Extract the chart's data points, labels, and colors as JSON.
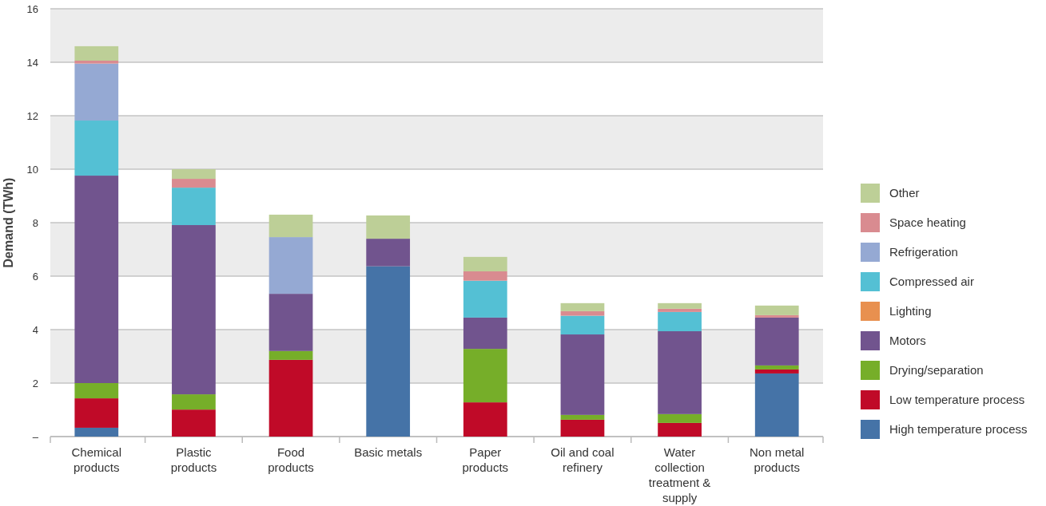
{
  "chart_data": {
    "type": "bar",
    "stacked": true,
    "ylabel": "Demand (TWh)",
    "categories": [
      "Chemical products",
      "Plastic products",
      "Food products",
      "Basic metals",
      "Paper products",
      "Oil and coal refinery",
      "Water collection treatment & supply",
      "Non metal products"
    ],
    "series": [
      {
        "name": "High temperature process",
        "color": "#4573a7",
        "values": [
          0.33,
          0,
          0,
          6.37,
          0,
          0,
          0,
          2.36
        ]
      },
      {
        "name": "Low temperature process",
        "color": "#c00a28",
        "values": [
          1.1,
          1.01,
          2.87,
          0,
          1.28,
          0.63,
          0.51,
          0.15
        ]
      },
      {
        "name": "Drying/separation",
        "color": "#76ae29",
        "values": [
          0.57,
          0.57,
          0.33,
          0,
          2.0,
          0.18,
          0.33,
          0.15
        ]
      },
      {
        "name": "Motors",
        "color": "#71548e",
        "values": [
          7.76,
          6.33,
          2.14,
          1.03,
          1.17,
          3.01,
          3.1,
          1.79
        ]
      },
      {
        "name": "Lighting",
        "color": "#e8904f",
        "values": [
          0,
          0,
          0,
          0,
          0,
          0,
          0,
          0
        ]
      },
      {
        "name": "Compressed air",
        "color": "#54c0d4",
        "values": [
          2.06,
          1.4,
          0,
          0,
          1.38,
          0.7,
          0.72,
          0
        ]
      },
      {
        "name": "Refrigeration",
        "color": "#95a9d3",
        "values": [
          2.13,
          0,
          2.12,
          0,
          0,
          0,
          0,
          0
        ]
      },
      {
        "name": "Space heating",
        "color": "#d98b90",
        "values": [
          0.11,
          0.33,
          0,
          0,
          0.35,
          0.17,
          0.12,
          0.09
        ]
      },
      {
        "name": "Other",
        "color": "#bdcf97",
        "values": [
          0.54,
          0.36,
          0.84,
          0.87,
          0.54,
          0.3,
          0.21,
          0.36
        ]
      }
    ],
    "ylim": [
      0,
      16
    ],
    "yticks": [
      {
        "value": 0,
        "label": "–"
      },
      2,
      4,
      6,
      8,
      10,
      12,
      14,
      16
    ],
    "grid": "y",
    "legend": "right"
  }
}
